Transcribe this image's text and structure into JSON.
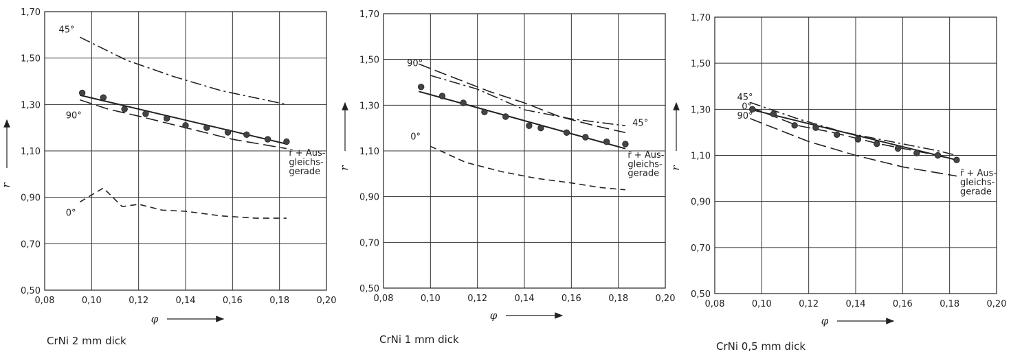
{
  "chart_data": [
    {
      "type": "line",
      "caption": "CrNi 2 mm dick",
      "ylabel": "r",
      "xlabel": "φ",
      "xlim": [
        0.08,
        0.2
      ],
      "ylim": [
        0.5,
        1.7
      ],
      "x_ticks": [
        "0,08",
        "0,10",
        "0,12",
        "0,14",
        "0,16",
        "0,18",
        "0,20"
      ],
      "y_ticks": [
        "0,50",
        "0,70",
        "0,90",
        "1,10",
        "1,30",
        "1,50",
        "1,70"
      ],
      "grid": true,
      "series": [
        {
          "name": "45°",
          "style": "dashdot",
          "x": [
            0.095,
            0.115,
            0.135,
            0.155,
            0.183
          ],
          "y": [
            1.59,
            1.49,
            1.42,
            1.36,
            1.3
          ]
        },
        {
          "name": "90°",
          "style": "longdash",
          "x": [
            0.095,
            0.107,
            0.12,
            0.14,
            0.16,
            0.183
          ],
          "y": [
            1.32,
            1.28,
            1.25,
            1.2,
            1.15,
            1.11
          ]
        },
        {
          "name": "0°",
          "style": "dash",
          "x": [
            0.095,
            0.105,
            0.113,
            0.12,
            0.13,
            0.14,
            0.155,
            0.17,
            0.183
          ],
          "y": [
            0.88,
            0.94,
            0.86,
            0.87,
            0.845,
            0.84,
            0.82,
            0.81,
            0.81
          ]
        },
        {
          "name": "",
          "style": "solid",
          "x": [
            0.095,
            0.183
          ],
          "y": [
            1.34,
            1.13
          ]
        },
        {
          "name": "",
          "style": "points",
          "x": [
            0.096,
            0.105,
            0.114,
            0.123,
            0.132,
            0.14,
            0.149,
            0.158,
            0.166,
            0.175,
            0.183
          ],
          "y": [
            1.35,
            1.33,
            1.28,
            1.26,
            1.24,
            1.21,
            1.2,
            1.18,
            1.17,
            1.15,
            1.14
          ]
        }
      ],
      "annotations": [
        {
          "text": "45°",
          "at": [
            0.086,
            1.61
          ]
        },
        {
          "text": "90°",
          "at": [
            0.089,
            1.24
          ]
        },
        {
          "text": "0°",
          "at": [
            0.089,
            0.82
          ]
        },
        {
          "text": "r̄ + Aus-",
          "at": [
            0.184,
            1.08
          ]
        },
        {
          "text": "gleichs-",
          "at": [
            0.184,
            1.04
          ]
        },
        {
          "text": "gerade",
          "at": [
            0.184,
            1.0
          ]
        }
      ]
    },
    {
      "type": "line",
      "caption": "CrNi  1 mm dick",
      "ylabel": "r",
      "xlabel": "φ",
      "xlim": [
        0.08,
        0.2
      ],
      "ylim": [
        0.5,
        1.7
      ],
      "x_ticks": [
        "0,08",
        "0,10",
        "0,12",
        "0,14",
        "0,16",
        "0,18",
        "0,20"
      ],
      "y_ticks": [
        "0,50",
        "0,70",
        "0,90",
        "1,10",
        "1,30",
        "1,50",
        "1,70"
      ],
      "grid": true,
      "series": [
        {
          "name": "90°",
          "style": "longdash",
          "x": [
            0.095,
            0.11,
            0.125,
            0.14,
            0.155,
            0.17,
            0.183
          ],
          "y": [
            1.48,
            1.42,
            1.36,
            1.31,
            1.25,
            1.21,
            1.18
          ]
        },
        {
          "name": "45°",
          "style": "dashdot",
          "x": [
            0.1,
            0.12,
            0.14,
            0.16,
            0.183
          ],
          "y": [
            1.43,
            1.37,
            1.28,
            1.24,
            1.21
          ]
        },
        {
          "name": "0°",
          "style": "dash",
          "x": [
            0.1,
            0.115,
            0.13,
            0.145,
            0.16,
            0.172,
            0.183
          ],
          "y": [
            1.12,
            1.05,
            1.01,
            0.98,
            0.96,
            0.94,
            0.93
          ]
        },
        {
          "name": "",
          "style": "solid",
          "x": [
            0.095,
            0.183
          ],
          "y": [
            1.36,
            1.11
          ]
        },
        {
          "name": "",
          "style": "points",
          "x": [
            0.096,
            0.105,
            0.114,
            0.123,
            0.132,
            0.142,
            0.147,
            0.158,
            0.166,
            0.175,
            0.183
          ],
          "y": [
            1.38,
            1.34,
            1.31,
            1.27,
            1.25,
            1.21,
            1.2,
            1.18,
            1.16,
            1.14,
            1.13
          ]
        }
      ],
      "annotations": [
        {
          "text": "90°",
          "at": [
            0.09,
            1.47
          ]
        },
        {
          "text": "45°",
          "at": [
            0.186,
            1.21
          ]
        },
        {
          "text": "0°",
          "at": [
            0.0915,
            1.15
          ]
        },
        {
          "text": "r̄ + Aus-",
          "at": [
            0.184,
            1.07
          ]
        },
        {
          "text": "gleichs-",
          "at": [
            0.184,
            1.03
          ]
        },
        {
          "text": "gerade",
          "at": [
            0.184,
            0.99
          ]
        }
      ]
    },
    {
      "type": "line",
      "caption": "CrNi  0,5 mm dick",
      "ylabel": "r",
      "xlabel": "φ",
      "xlim": [
        0.08,
        0.2
      ],
      "ylim": [
        0.5,
        1.7
      ],
      "x_ticks": [
        "0,08",
        "0,10",
        "0,12",
        "0,14",
        "0,16",
        "0,18",
        "0,20"
      ],
      "y_ticks": [
        "0,50",
        "0,70",
        "0,90",
        "1,10",
        "1,30",
        "1,50",
        "1,70"
      ],
      "grid": true,
      "series": [
        {
          "name": "45°",
          "style": "dashdot",
          "x": [
            0.095,
            0.115,
            0.135,
            0.155,
            0.175,
            0.183
          ],
          "y": [
            1.33,
            1.26,
            1.2,
            1.16,
            1.12,
            1.1
          ]
        },
        {
          "name": "0°",
          "style": "longdash",
          "x": [
            0.095,
            0.105,
            0.115,
            0.13,
            0.15,
            0.17,
            0.183
          ],
          "y": [
            1.31,
            1.27,
            1.23,
            1.2,
            1.15,
            1.11,
            1.08
          ]
        },
        {
          "name": "90°",
          "style": "longdash",
          "x": [
            0.095,
            0.12,
            0.14,
            0.16,
            0.183
          ],
          "y": [
            1.26,
            1.16,
            1.1,
            1.05,
            1.01
          ]
        },
        {
          "name": "",
          "style": "solid",
          "x": [
            0.095,
            0.183
          ],
          "y": [
            1.3,
            1.08
          ]
        },
        {
          "name": "",
          "style": "points",
          "x": [
            0.096,
            0.105,
            0.114,
            0.123,
            0.132,
            0.141,
            0.149,
            0.158,
            0.166,
            0.175,
            0.183
          ],
          "y": [
            1.3,
            1.28,
            1.23,
            1.22,
            1.19,
            1.17,
            1.15,
            1.13,
            1.11,
            1.1,
            1.08
          ]
        }
      ],
      "annotations": [
        {
          "text": "45°",
          "at": [
            0.0895,
            1.34
          ]
        },
        {
          "text": "0°",
          "at": [
            0.0915,
            1.3
          ]
        },
        {
          "text": "90°",
          "at": [
            0.0895,
            1.26
          ]
        },
        {
          "text": "r̄ + Aus-",
          "at": [
            0.1845,
            1.01
          ]
        },
        {
          "text": "gleichs-",
          "at": [
            0.1845,
            0.97
          ]
        },
        {
          "text": "gerade",
          "at": [
            0.1845,
            0.93
          ]
        }
      ]
    }
  ]
}
